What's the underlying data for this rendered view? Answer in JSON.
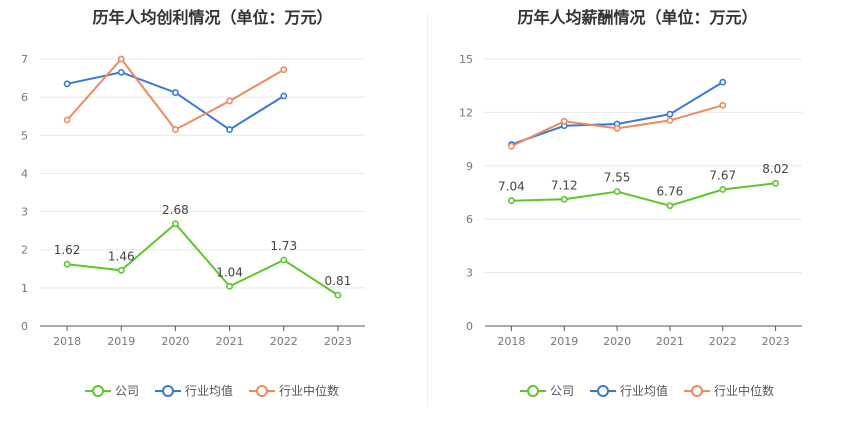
{
  "chart_data": [
    {
      "type": "line",
      "title": "历年人均创利情况（单位：万元）",
      "categories": [
        "2018",
        "2019",
        "2020",
        "2021",
        "2022",
        "2023"
      ],
      "ylim": [
        0,
        7
      ],
      "yticks": [
        "0",
        "1",
        "2",
        "3",
        "4",
        "5",
        "6",
        "7"
      ],
      "grid": true,
      "legend": "bottom-center",
      "series": [
        {
          "name": "公司",
          "color": "#5bc72d",
          "labels": true,
          "values": [
            1.62,
            1.46,
            2.68,
            1.04,
            1.73,
            0.81
          ],
          "value_labels": [
            "1.62",
            "1.46",
            "2.68",
            "1.04",
            "1.73",
            "0.81"
          ]
        },
        {
          "name": "行业均值",
          "color": "#3a78d8",
          "labels": false,
          "values": [
            6.35,
            6.65,
            6.12,
            5.15,
            6.03,
            null
          ]
        },
        {
          "name": "行业中位数",
          "color": "#f08a5d",
          "labels": false,
          "values": [
            5.4,
            7.0,
            5.15,
            5.9,
            6.72,
            null
          ]
        }
      ]
    },
    {
      "type": "line",
      "title": "历年人均薪酬情况（单位：万元）",
      "categories": [
        "2018",
        "2019",
        "2020",
        "2021",
        "2022",
        "2023"
      ],
      "ylim": [
        0,
        15
      ],
      "yticks": [
        "0",
        "3",
        "6",
        "9",
        "12",
        "15"
      ],
      "grid": true,
      "legend": "bottom-center",
      "series": [
        {
          "name": "公司",
          "color": "#5bc72d",
          "labels": true,
          "values": [
            7.04,
            7.12,
            7.55,
            6.76,
            7.67,
            8.02
          ],
          "value_labels": [
            "7.04",
            "7.12",
            "7.55",
            "6.76",
            "7.67",
            "8.02"
          ]
        },
        {
          "name": "行业均值",
          "color": "#3a78d8",
          "labels": false,
          "values": [
            10.2,
            11.25,
            11.35,
            11.9,
            13.7,
            null
          ]
        },
        {
          "name": "行业中位数",
          "color": "#f08a5d",
          "labels": false,
          "values": [
            10.1,
            11.5,
            11.1,
            11.55,
            12.4,
            null
          ]
        }
      ]
    }
  ]
}
